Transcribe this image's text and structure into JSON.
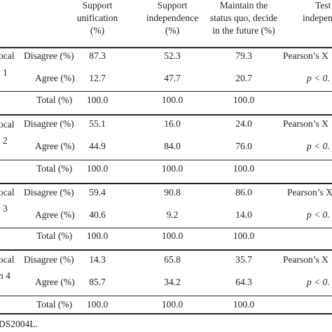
{
  "header": {
    "col1": [
      "Support",
      "unification",
      "(%)"
    ],
    "col2": [
      "Support",
      "independence",
      "(%)"
    ],
    "col3": [
      "Maintain the",
      "status quo, decide",
      "in the future (%)"
    ],
    "col4": [
      "Test",
      "indepen"
    ]
  },
  "row_labels": {
    "disagree": "Disagree (%)",
    "agree": "Agree (%)",
    "total": "Total (%)"
  },
  "groups": [
    {
      "label": [
        "ocal",
        "1"
      ],
      "disagree": [
        "87.3",
        "52.3",
        "79.3"
      ],
      "agree": [
        "12.7",
        "47.7",
        "20.7"
      ],
      "total": [
        "100.0",
        "100.0",
        "100.0"
      ],
      "test_stat": "Pearson’s X",
      "p_value": "p < 0."
    },
    {
      "label": [
        "ocal",
        "2"
      ],
      "disagree": [
        "55.1",
        "16.0",
        "24.0"
      ],
      "agree": [
        "44.9",
        "84.0",
        "76.0"
      ],
      "total": [
        "100.0",
        "100.0",
        "100.0"
      ],
      "test_stat": "Pearson’s X",
      "p_value": "p < 0."
    },
    {
      "label": [
        "ocal",
        "3"
      ],
      "disagree": [
        "59.4",
        "90.8",
        "86.0"
      ],
      "agree": [
        "40.6",
        "9.2",
        "14.0"
      ],
      "total": [
        "100.0",
        "100.0",
        "100.0"
      ],
      "test_stat": "Pearson’s X",
      "p_value": "p < 0."
    },
    {
      "label": [
        "ocal",
        "n 4"
      ],
      "disagree": [
        "14.3",
        "65.8",
        "35.7"
      ],
      "agree": [
        "85.7",
        "34.2",
        "64.3"
      ],
      "total": [
        "100.0",
        "100.0",
        "100.0"
      ],
      "test_stat": "Pearson’s X",
      "p_value": "p < 0."
    }
  ],
  "footnote": "DS2004L."
}
